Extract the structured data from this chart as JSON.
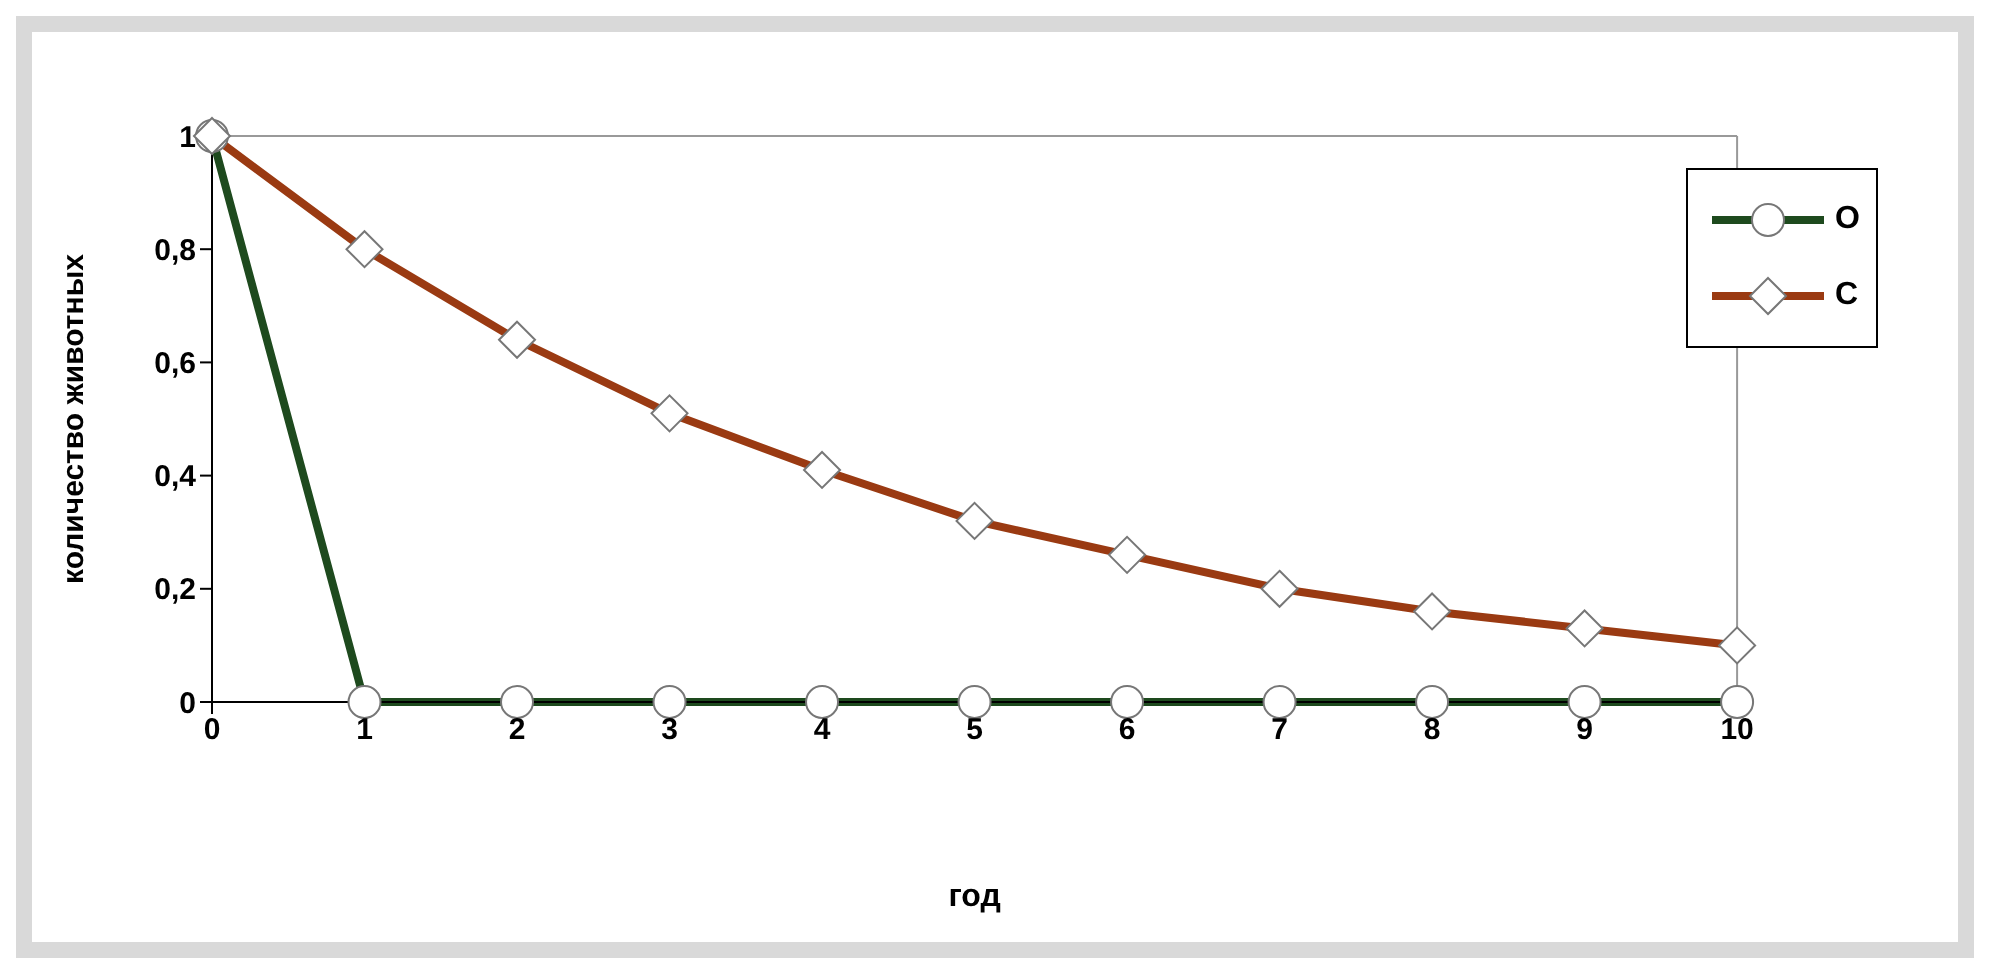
{
  "chart_data": {
    "type": "line",
    "xlabel": "год",
    "ylabel": "количество животных",
    "x": [
      0,
      1,
      2,
      3,
      4,
      5,
      6,
      7,
      8,
      9,
      10
    ],
    "series": [
      {
        "name": "O",
        "color": "#1e4a1e",
        "marker": "circle",
        "values": [
          1,
          0,
          0,
          0,
          0,
          0,
          0,
          0,
          0,
          0,
          0
        ]
      },
      {
        "name": "C",
        "color": "#9a3a12",
        "marker": "diamond",
        "values": [
          1,
          0.8,
          0.64,
          0.51,
          0.41,
          0.32,
          0.26,
          0.2,
          0.16,
          0.13,
          0.1
        ]
      }
    ],
    "xlim": [
      0,
      10
    ],
    "xticks": [
      0,
      1,
      2,
      3,
      4,
      5,
      6,
      7,
      8,
      9,
      10
    ],
    "ylim": [
      0,
      1
    ],
    "yticks": [
      0,
      {
        "value": 0.2,
        "label": "0,2"
      },
      {
        "value": 0.4,
        "label": "0,4"
      },
      {
        "value": 0.6,
        "label": "0,6"
      },
      {
        "value": 0.8,
        "label": "0,8"
      },
      1
    ],
    "grid": false,
    "legend": "top right",
    "line_style": "solid"
  }
}
